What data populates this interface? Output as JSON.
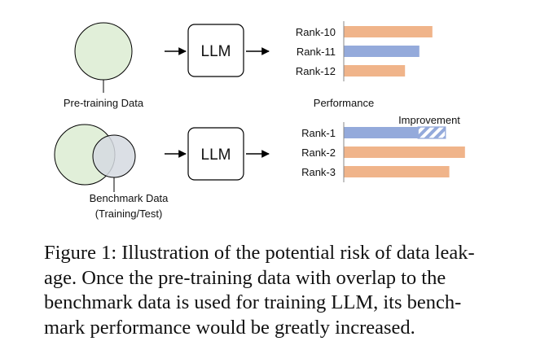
{
  "top": {
    "circle_label": "Pre-training Data",
    "model_label": "LLM",
    "bars": [
      {
        "label": "Rank-10",
        "value": 0.68,
        "color": "#f0b48a"
      },
      {
        "label": "Rank-11",
        "value": 0.58,
        "color": "#94aadb"
      },
      {
        "label": "Rank-12",
        "value": 0.47,
        "color": "#f0b48a"
      }
    ]
  },
  "performance_label": "Performance",
  "bottom": {
    "circle_label_line1": "Benchmark Data",
    "circle_label_line2": "(Training/Test)",
    "model_label": "LLM",
    "improvement_label": "Improvement",
    "bars": [
      {
        "label": "Rank-1",
        "value": 0.57,
        "improvement": 0.78,
        "color": "#94aadb"
      },
      {
        "label": "Rank-2",
        "value": 0.93,
        "color": "#f0b48a"
      },
      {
        "label": "Rank-3",
        "value": 0.81,
        "color": "#f0b48a"
      }
    ]
  },
  "colors": {
    "pretrain_fill": "#e1efd9",
    "benchmark_fill": "#d5d9e1",
    "hatch": "#94aadb",
    "stroke": "#000000"
  },
  "caption": {
    "lines": [
      "Figure 1: Illustration of the potential risk of data leak-",
      "age.  Once the pre-training data with overlap to the",
      "benchmark data is used for training LLM, its bench-",
      "mark performance would be greatly increased."
    ]
  }
}
